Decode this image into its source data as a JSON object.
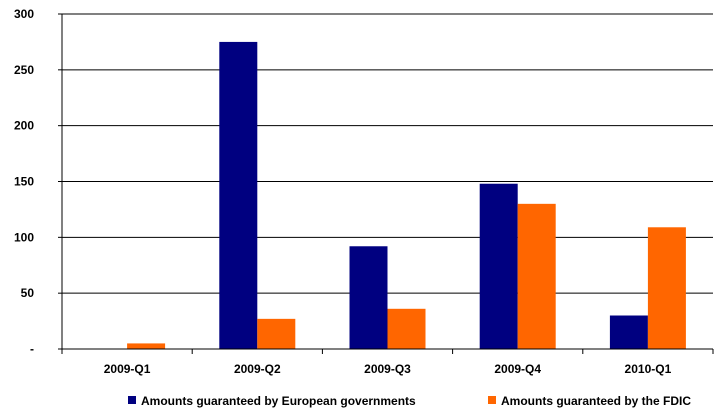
{
  "chart_data": {
    "type": "bar",
    "title": "",
    "xlabel": "",
    "ylabel": "",
    "categories": [
      "2009-Q1",
      "2009-Q2",
      "2009-Q3",
      "2009-Q4",
      "2010-Q1"
    ],
    "y_ticks": [
      "-",
      "50",
      "100",
      "150",
      "200",
      "250",
      "300"
    ],
    "y_tick_values": [
      0,
      50,
      100,
      150,
      200,
      250,
      300
    ],
    "ylim": [
      0,
      300
    ],
    "grid": true,
    "legend_position": "bottom",
    "series": [
      {
        "name": "Amounts guaranteed by European governments",
        "color": "#000080",
        "values": [
          0,
          275,
          92,
          148,
          30
        ]
      },
      {
        "name": "Amounts guaranteed by the FDIC",
        "color": "#FF6600",
        "values": [
          5,
          27,
          36,
          130,
          109
        ]
      }
    ]
  }
}
